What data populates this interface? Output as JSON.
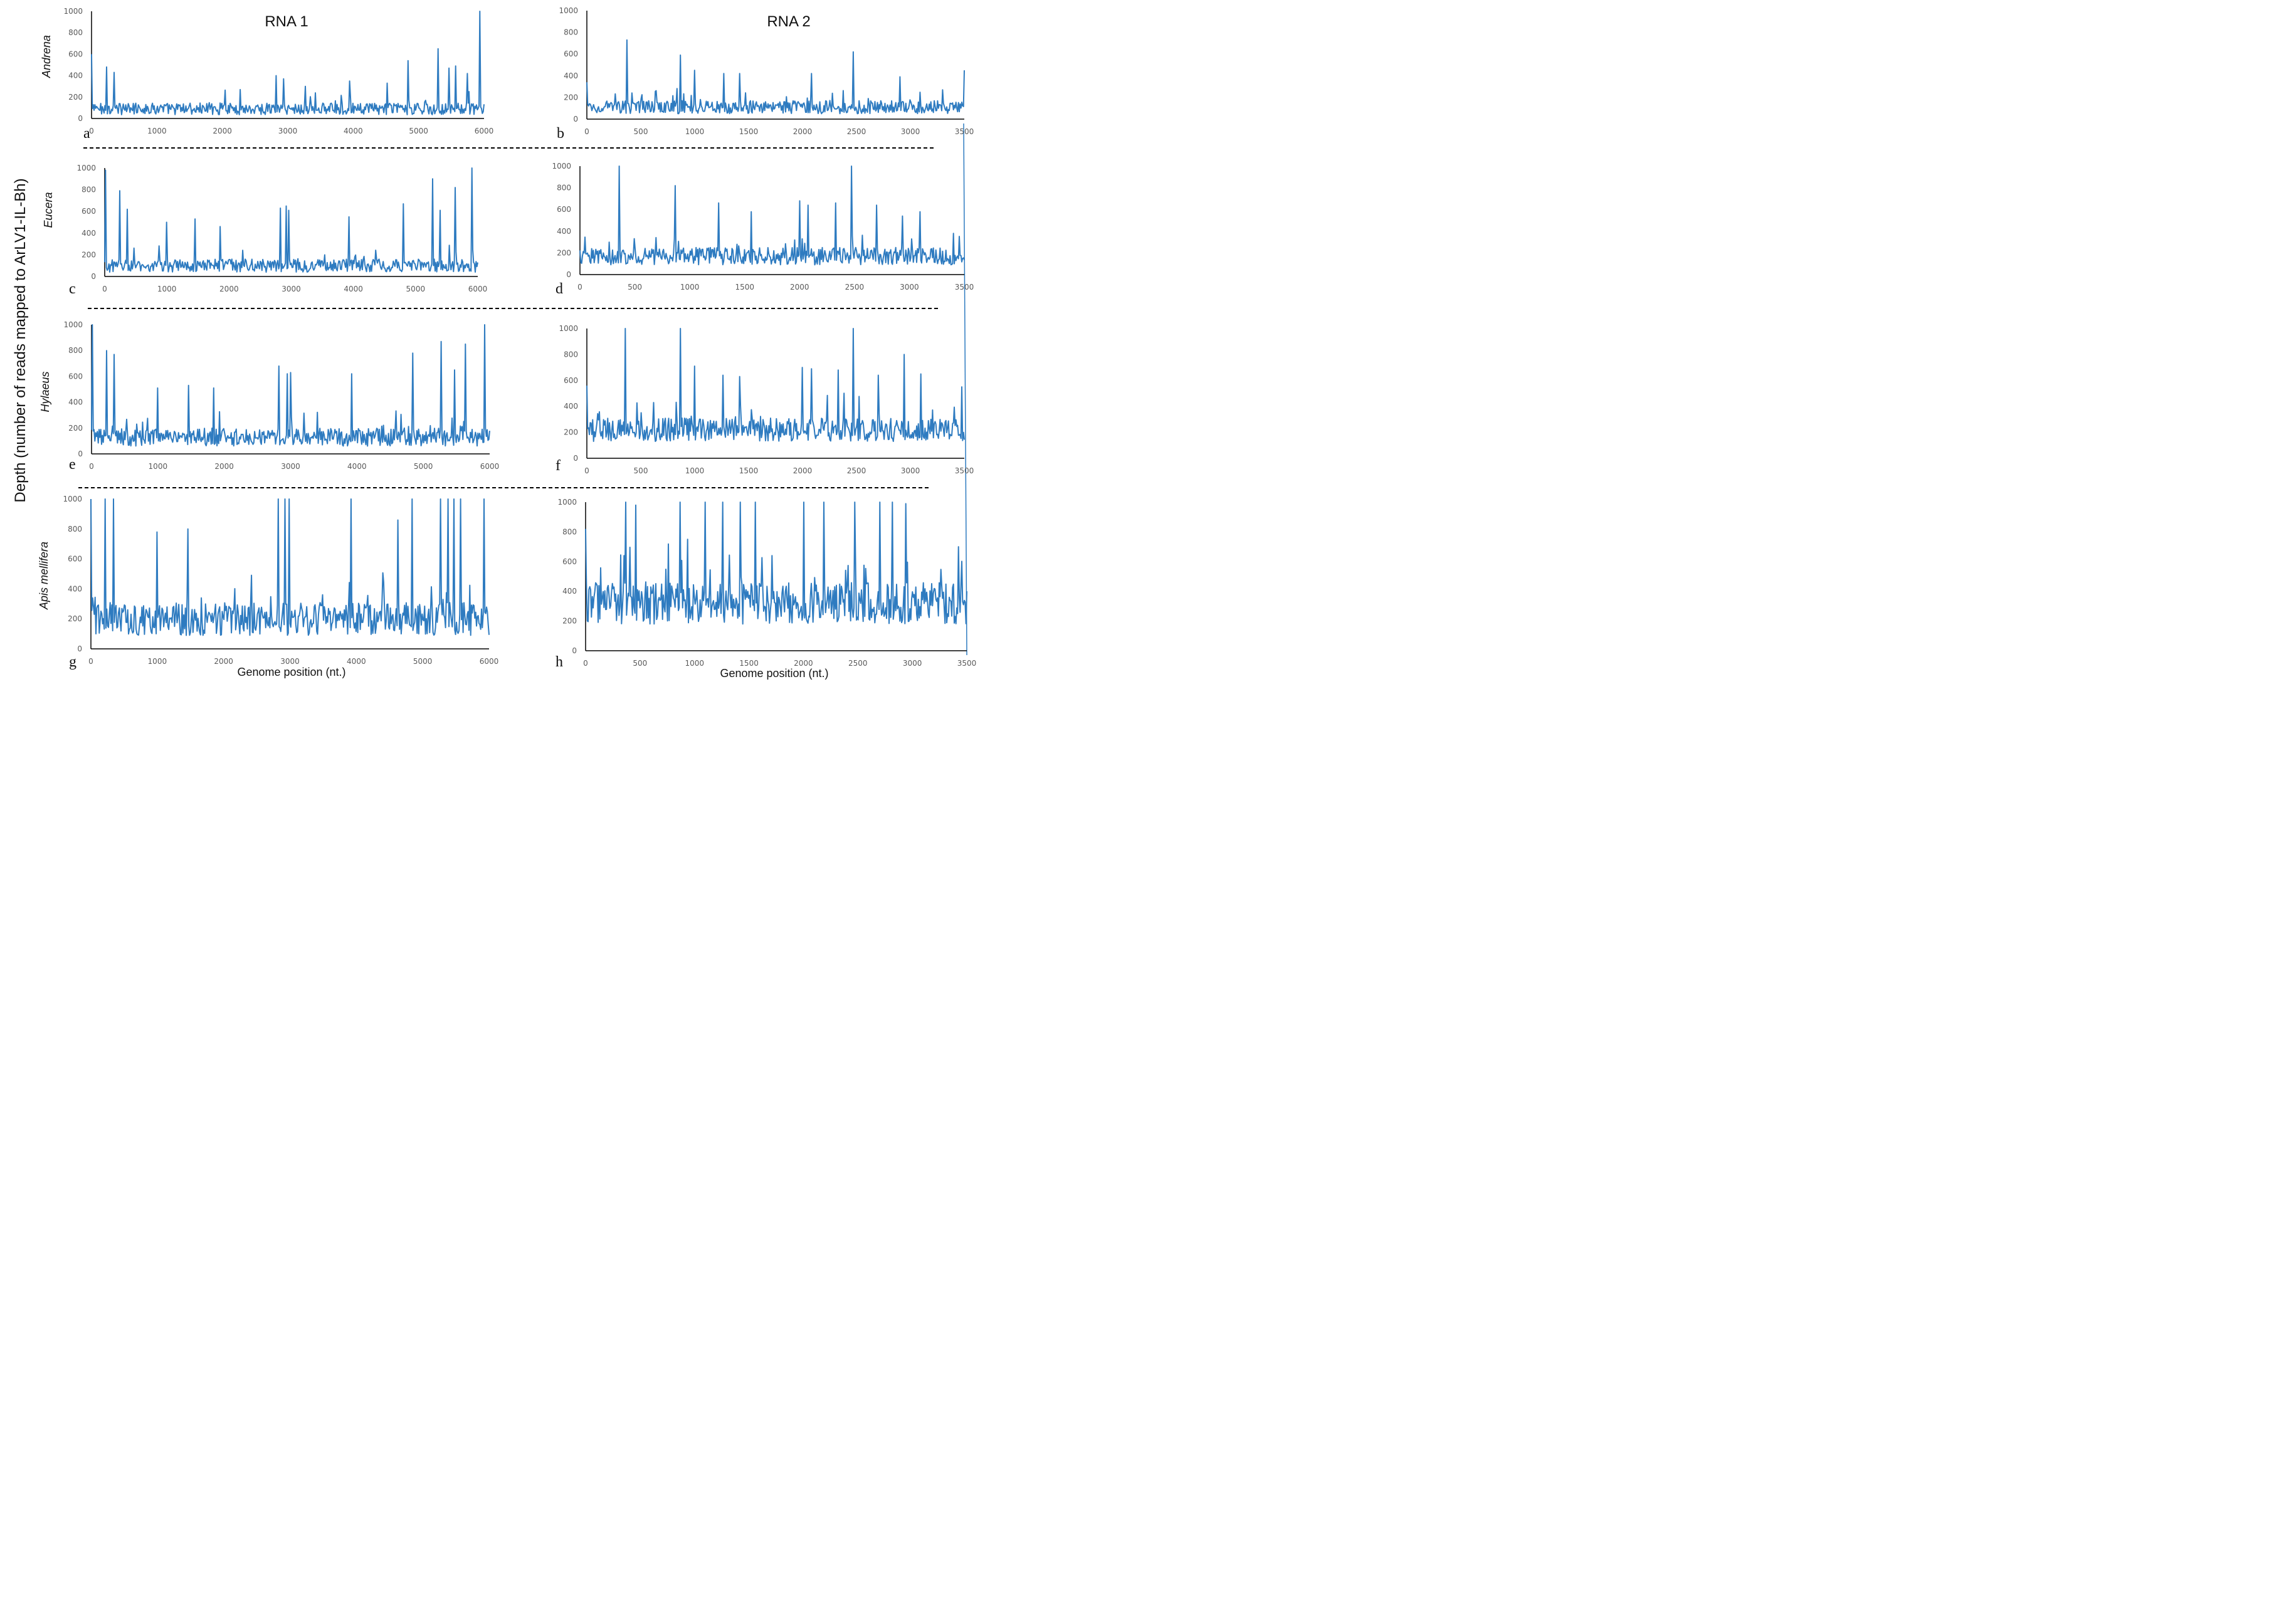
{
  "figure": {
    "y_axis_label": "Depth (number of reads mapped to ArLV1-IL-Bh)",
    "column_titles": [
      "RNA 1",
      "RNA 2"
    ],
    "x_axis_label": "Genome position (nt.)",
    "species": [
      "Andrena",
      "Eucera",
      "Hylaeus",
      "Apis mellifera"
    ],
    "line_color": "#2e7bc0"
  },
  "chart_data": [
    {
      "panel": "a",
      "type": "line",
      "species": "Andrena",
      "segment": "RNA 1",
      "xlim": [
        0,
        6000
      ],
      "ylim": [
        0,
        1000
      ],
      "xticks": [
        0,
        1000,
        2000,
        3000,
        4000,
        5000,
        6000
      ],
      "yticks": [
        0,
        200,
        400,
        600,
        800,
        1000
      ],
      "xlabel": "",
      "ylabel": "Depth",
      "baseline": 90,
      "noise": 55,
      "spikes": [
        [
          0,
          600
        ],
        [
          230,
          480
        ],
        [
          340,
          430
        ],
        [
          2820,
          400
        ],
        [
          2930,
          370
        ],
        [
          3270,
          300
        ],
        [
          3950,
          350
        ],
        [
          4520,
          330
        ],
        [
          4840,
          540
        ],
        [
          5300,
          650
        ],
        [
          5470,
          470
        ],
        [
          5560,
          490
        ],
        [
          5750,
          420
        ],
        [
          5930,
          1000
        ]
      ]
    },
    {
      "panel": "b",
      "type": "line",
      "species": "Andrena",
      "segment": "RNA 2",
      "xlim": [
        0,
        3500
      ],
      "ylim": [
        0,
        1000
      ],
      "xticks": [
        0,
        500,
        1000,
        1500,
        2000,
        2500,
        3000,
        3500
      ],
      "yticks": [
        0,
        200,
        400,
        600,
        800,
        1000
      ],
      "xlabel": "",
      "ylabel": "Depth",
      "baseline": 110,
      "noise": 60,
      "spikes": [
        [
          0,
          340
        ],
        [
          370,
          730
        ],
        [
          870,
          590
        ],
        [
          1000,
          450
        ],
        [
          1270,
          420
        ],
        [
          1420,
          420
        ],
        [
          2080,
          420
        ],
        [
          2470,
          620
        ],
        [
          2900,
          390
        ],
        [
          3300,
          270
        ],
        [
          3500,
          450
        ]
      ]
    },
    {
      "panel": "c",
      "type": "line",
      "species": "Eucera",
      "segment": "RNA 1",
      "xlim": [
        0,
        6000
      ],
      "ylim": [
        0,
        1000
      ],
      "xticks": [
        0,
        1000,
        2000,
        3000,
        4000,
        5000,
        6000
      ],
      "yticks": [
        0,
        200,
        400,
        600,
        800,
        1000
      ],
      "xlabel": "",
      "ylabel": "Depth",
      "baseline": 100,
      "noise": 60,
      "spikes": [
        [
          20,
          980
        ],
        [
          240,
          790
        ],
        [
          360,
          620
        ],
        [
          1000,
          500
        ],
        [
          1450,
          530
        ],
        [
          1850,
          460
        ],
        [
          2830,
          630
        ],
        [
          2920,
          650
        ],
        [
          2960,
          610
        ],
        [
          3930,
          550
        ],
        [
          4800,
          670
        ],
        [
          5270,
          900
        ],
        [
          5400,
          610
        ],
        [
          5640,
          820
        ],
        [
          5900,
          1000
        ]
      ]
    },
    {
      "panel": "d",
      "type": "line",
      "species": "Eucera",
      "segment": "RNA 2",
      "xlim": [
        0,
        3500
      ],
      "ylim": [
        0,
        1000
      ],
      "xticks": [
        0,
        500,
        1000,
        1500,
        2000,
        2500,
        3000,
        3500
      ],
      "yticks": [
        0,
        200,
        400,
        600,
        800,
        1000
      ],
      "xlabel": "",
      "ylabel": "Depth",
      "baseline": 170,
      "noise": 80,
      "spikes": [
        [
          360,
          1000
        ],
        [
          870,
          820
        ],
        [
          1260,
          660
        ],
        [
          1560,
          580
        ],
        [
          2000,
          680
        ],
        [
          2080,
          640
        ],
        [
          2330,
          660
        ],
        [
          2470,
          1000
        ],
        [
          2700,
          640
        ],
        [
          2940,
          540
        ],
        [
          3100,
          580
        ],
        [
          3400,
          380
        ]
      ]
    },
    {
      "panel": "e",
      "type": "line",
      "species": "Hylaeus",
      "segment": "RNA 1",
      "xlim": [
        0,
        6000
      ],
      "ylim": [
        0,
        1000
      ],
      "xticks": [
        0,
        1000,
        2000,
        3000,
        4000,
        5000,
        6000
      ],
      "yticks": [
        0,
        200,
        400,
        600,
        800,
        1000
      ],
      "xlabel": "",
      "ylabel": "Depth",
      "baseline": 130,
      "noise": 70,
      "spikes": [
        [
          10,
          1000
        ],
        [
          230,
          800
        ],
        [
          340,
          770
        ],
        [
          1000,
          510
        ],
        [
          1460,
          530
        ],
        [
          1840,
          510
        ],
        [
          2820,
          680
        ],
        [
          2950,
          620
        ],
        [
          3000,
          630
        ],
        [
          3920,
          620
        ],
        [
          4840,
          780
        ],
        [
          5270,
          870
        ],
        [
          5470,
          650
        ],
        [
          5640,
          850
        ],
        [
          5920,
          1000
        ]
      ]
    },
    {
      "panel": "f",
      "type": "line",
      "species": "Hylaeus",
      "segment": "RNA 2",
      "xlim": [
        0,
        3500
      ],
      "ylim": [
        0,
        1000
      ],
      "xticks": [
        0,
        500,
        1000,
        1500,
        2000,
        2500,
        3000,
        3500
      ],
      "yticks": [
        0,
        200,
        400,
        600,
        800,
        1000
      ],
      "xlabel": "",
      "ylabel": "Depth",
      "baseline": 220,
      "noise": 90,
      "spikes": [
        [
          0,
          560
        ],
        [
          360,
          1000
        ],
        [
          870,
          1000
        ],
        [
          1000,
          710
        ],
        [
          1260,
          640
        ],
        [
          1420,
          630
        ],
        [
          2000,
          700
        ],
        [
          2080,
          690
        ],
        [
          2330,
          680
        ],
        [
          2470,
          1000
        ],
        [
          2700,
          640
        ],
        [
          2940,
          800
        ],
        [
          3100,
          650
        ],
        [
          3480,
          550
        ]
      ]
    },
    {
      "panel": "g",
      "type": "line",
      "species": "Apis mellifera",
      "segment": "RNA 1",
      "xlim": [
        0,
        6000
      ],
      "ylim": [
        0,
        1000
      ],
      "xticks": [
        0,
        1000,
        2000,
        3000,
        4000,
        5000,
        6000
      ],
      "yticks": [
        0,
        200,
        400,
        600,
        800,
        1000
      ],
      "xlabel": "Genome position (nt.)",
      "ylabel": "Depth",
      "baseline": 200,
      "noise": 110,
      "spikes": [
        [
          0,
          1000
        ],
        [
          220,
          1000
        ],
        [
          340,
          1000
        ],
        [
          1000,
          780
        ],
        [
          1460,
          800
        ],
        [
          2820,
          1000
        ],
        [
          2930,
          1000
        ],
        [
          2990,
          1000
        ],
        [
          3920,
          1000
        ],
        [
          4620,
          860
        ],
        [
          4840,
          1000
        ],
        [
          5270,
          1000
        ],
        [
          5380,
          1000
        ],
        [
          5470,
          1000
        ],
        [
          5570,
          1000
        ],
        [
          5920,
          1000
        ]
      ]
    },
    {
      "panel": "h",
      "type": "line",
      "species": "Apis mellifera",
      "segment": "RNA 2",
      "xlim": [
        0,
        3500
      ],
      "ylim": [
        0,
        1000
      ],
      "xticks": [
        0,
        500,
        1000,
        1500,
        2000,
        2500,
        3000,
        3500
      ],
      "yticks": [
        0,
        200,
        400,
        600,
        800,
        1000
      ],
      "xlabel": "Genome position (nt.)",
      "ylabel": "Depth",
      "baseline": 320,
      "noise": 140,
      "spikes": [
        [
          0,
          820
        ],
        [
          370,
          1000
        ],
        [
          460,
          980
        ],
        [
          870,
          1000
        ],
        [
          1100,
          1000
        ],
        [
          1260,
          1000
        ],
        [
          1420,
          1000
        ],
        [
          1560,
          1000
        ],
        [
          2000,
          1000
        ],
        [
          2190,
          1000
        ],
        [
          2470,
          1000
        ],
        [
          2700,
          1000
        ],
        [
          2820,
          1000
        ],
        [
          2940,
          990
        ],
        [
          3420,
          700
        ]
      ]
    }
  ]
}
